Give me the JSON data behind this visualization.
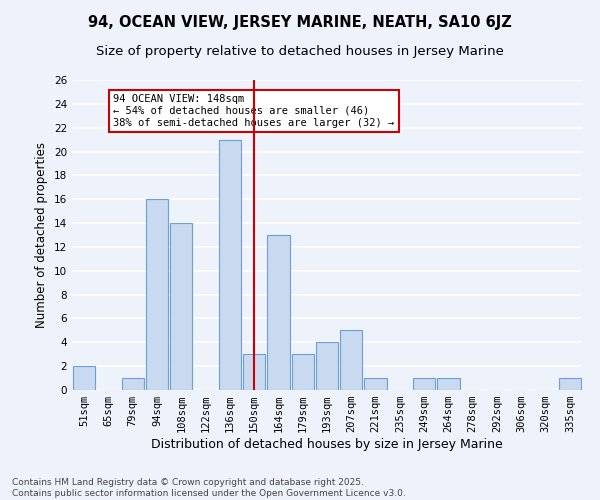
{
  "title": "94, OCEAN VIEW, JERSEY MARINE, NEATH, SA10 6JZ",
  "subtitle": "Size of property relative to detached houses in Jersey Marine",
  "xlabel": "Distribution of detached houses by size in Jersey Marine",
  "ylabel": "Number of detached properties",
  "categories": [
    "51sqm",
    "65sqm",
    "79sqm",
    "94sqm",
    "108sqm",
    "122sqm",
    "136sqm",
    "150sqm",
    "164sqm",
    "179sqm",
    "193sqm",
    "207sqm",
    "221sqm",
    "235sqm",
    "249sqm",
    "264sqm",
    "278sqm",
    "292sqm",
    "306sqm",
    "320sqm",
    "335sqm"
  ],
  "values": [
    2,
    0,
    1,
    16,
    14,
    0,
    21,
    3,
    13,
    3,
    4,
    5,
    1,
    0,
    1,
    1,
    0,
    0,
    0,
    0,
    1
  ],
  "bar_color": "#c9d9f0",
  "bar_edge_color": "#6aa0d4",
  "vline_index": 7,
  "annotation_text": "94 OCEAN VIEW: 148sqm\n← 54% of detached houses are smaller (46)\n38% of semi-detached houses are larger (32) →",
  "annotation_box_color": "#ffffff",
  "annotation_box_edge_color": "#cc0000",
  "vline_color": "#cc0000",
  "ylim": [
    0,
    26
  ],
  "yticks": [
    0,
    2,
    4,
    6,
    8,
    10,
    12,
    14,
    16,
    18,
    20,
    22,
    24,
    26
  ],
  "background_color": "#eef2fb",
  "grid_color": "#ffffff",
  "footer": "Contains HM Land Registry data © Crown copyright and database right 2025.\nContains public sector information licensed under the Open Government Licence v3.0.",
  "title_fontsize": 10.5,
  "subtitle_fontsize": 9.5,
  "xlabel_fontsize": 9,
  "ylabel_fontsize": 8.5,
  "tick_fontsize": 7.5,
  "footer_fontsize": 6.5
}
